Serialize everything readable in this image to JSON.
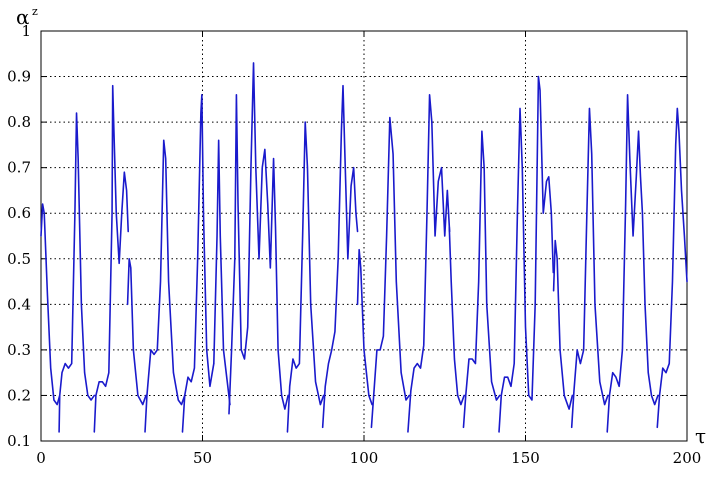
{
  "chart_data": {
    "type": "line",
    "xlabel": "τ",
    "ylabel": "α",
    "ylabel_superscript": "z",
    "xlim": [
      0,
      200
    ],
    "ylim": [
      0.1,
      1.0
    ],
    "xticks": [
      0,
      50,
      100,
      150,
      200
    ],
    "yticks": [
      0.1,
      0.2,
      0.3,
      0.4,
      0.5,
      0.6,
      0.7,
      0.8,
      0.9,
      1
    ],
    "xtick_labels": [
      "0",
      "50",
      "100",
      "150",
      "200"
    ],
    "ytick_labels": [
      "0.1",
      "0.2",
      "0.3",
      "0.4",
      "0.5",
      "0.6",
      "0.7",
      "0.8",
      "0.9",
      "1"
    ],
    "grid": true,
    "grid_style": "dotted",
    "series_color": "#1a1acc",
    "series": [
      {
        "segments": [
          [
            [
              0,
              0.55
            ],
            [
              0.5,
              0.62
            ],
            [
              1,
              0.6
            ],
            [
              2,
              0.42
            ],
            [
              3,
              0.26
            ],
            [
              4,
              0.19
            ],
            [
              5,
              0.18
            ],
            [
              5.8,
              0.2
            ],
            [
              6.5,
              0.25
            ],
            [
              7.5,
              0.27
            ],
            [
              8.5,
              0.26
            ],
            [
              9.5,
              0.27
            ],
            [
              10.5,
              0.6
            ],
            [
              11,
              0.82
            ],
            [
              11.5,
              0.72
            ],
            [
              12.5,
              0.4
            ],
            [
              13.5,
              0.25
            ],
            [
              14.5,
              0.2
            ],
            [
              15.5,
              0.19
            ],
            [
              16.5,
              0.2
            ]
          ],
          [
            [
              5.6,
              0.12
            ],
            [
              5.8,
              0.2
            ]
          ],
          [
            [
              16.5,
              0.12
            ],
            [
              17,
              0.2
            ],
            [
              18,
              0.23
            ],
            [
              19,
              0.23
            ],
            [
              20,
              0.22
            ],
            [
              21,
              0.25
            ],
            [
              22,
              0.6
            ],
            [
              22.2,
              0.88
            ],
            [
              22.5,
              0.8
            ],
            [
              23.3,
              0.6
            ],
            [
              24.2,
              0.49
            ],
            [
              25,
              0.6
            ],
            [
              25.8,
              0.69
            ],
            [
              26.5,
              0.65
            ],
            [
              27,
              0.56
            ]
          ],
          [
            [
              26.8,
              0.4
            ],
            [
              27.3,
              0.5
            ],
            [
              27.8,
              0.48
            ],
            [
              28.6,
              0.3
            ],
            [
              30,
              0.2
            ],
            [
              31.5,
              0.18
            ],
            [
              32.5,
              0.2
            ]
          ],
          [
            [
              32.2,
              0.12
            ],
            [
              32.8,
              0.2
            ],
            [
              34,
              0.3
            ],
            [
              35,
              0.29
            ],
            [
              36,
              0.3
            ],
            [
              37,
              0.45
            ],
            [
              38,
              0.76
            ],
            [
              38.6,
              0.72
            ],
            [
              39.5,
              0.45
            ],
            [
              41,
              0.25
            ],
            [
              42.5,
              0.19
            ],
            [
              43.5,
              0.18
            ],
            [
              44.5,
              0.2
            ]
          ],
          [
            [
              43.8,
              0.12
            ],
            [
              44.5,
              0.2
            ],
            [
              45.5,
              0.24
            ],
            [
              46.5,
              0.23
            ],
            [
              47.5,
              0.26
            ],
            [
              48.5,
              0.5
            ],
            [
              49.5,
              0.82
            ],
            [
              49.8,
              0.86
            ],
            [
              50.3,
              0.6
            ],
            [
              51.3,
              0.3
            ],
            [
              52.3,
              0.22
            ],
            [
              53.5,
              0.27
            ]
          ],
          [
            [
              53.5,
              0.27
            ],
            [
              54.5,
              0.55
            ],
            [
              55,
              0.76
            ],
            [
              55.5,
              0.55
            ],
            [
              56.5,
              0.3
            ],
            [
              57.5,
              0.24
            ],
            [
              58.5,
              0.18
            ]
          ],
          [
            [
              58.2,
              0.16
            ],
            [
              59,
              0.3
            ],
            [
              60,
              0.5
            ],
            [
              60.5,
              0.86
            ],
            [
              61,
              0.62
            ],
            [
              62,
              0.3
            ],
            [
              63,
              0.28
            ],
            [
              64,
              0.35
            ],
            [
              65,
              0.7
            ],
            [
              65.8,
              0.93
            ],
            [
              66.5,
              0.7
            ],
            [
              67.5,
              0.5
            ],
            [
              68.5,
              0.7
            ],
            [
              69.3,
              0.74
            ],
            [
              70.2,
              0.62
            ],
            [
              71,
              0.48
            ],
            [
              72,
              0.72
            ],
            [
              72.6,
              0.57
            ],
            [
              73.4,
              0.3
            ],
            [
              74.5,
              0.2
            ],
            [
              75.5,
              0.17
            ],
            [
              76.5,
              0.2
            ]
          ],
          [
            [
              76.3,
              0.12
            ],
            [
              77,
              0.22
            ],
            [
              78,
              0.28
            ],
            [
              79,
              0.26
            ],
            [
              80,
              0.27
            ],
            [
              81,
              0.55
            ],
            [
              81.8,
              0.8
            ],
            [
              82.5,
              0.7
            ],
            [
              83.5,
              0.4
            ],
            [
              85,
              0.23
            ],
            [
              86.5,
              0.18
            ],
            [
              87.5,
              0.2
            ]
          ],
          [
            [
              87.2,
              0.13
            ],
            [
              88,
              0.22
            ],
            [
              89,
              0.27
            ],
            [
              90,
              0.3
            ],
            [
              91,
              0.34
            ],
            [
              92,
              0.5
            ],
            [
              93,
              0.78
            ],
            [
              93.5,
              0.88
            ],
            [
              94,
              0.75
            ],
            [
              95,
              0.5
            ],
            [
              96,
              0.66
            ],
            [
              96.8,
              0.7
            ],
            [
              97.5,
              0.6
            ],
            [
              98,
              0.56
            ]
          ],
          [
            [
              98,
              0.4
            ],
            [
              98.5,
              0.52
            ],
            [
              99,
              0.48
            ],
            [
              100,
              0.3
            ],
            [
              101.5,
              0.2
            ],
            [
              102.5,
              0.18
            ]
          ],
          [
            [
              102.3,
              0.13
            ],
            [
              103,
              0.2
            ],
            [
              104,
              0.3
            ],
            [
              105,
              0.3
            ],
            [
              106,
              0.33
            ],
            [
              107,
              0.55
            ],
            [
              108,
              0.81
            ],
            [
              109,
              0.73
            ],
            [
              110,
              0.45
            ],
            [
              111.5,
              0.25
            ],
            [
              113,
              0.19
            ],
            [
              114,
              0.2
            ]
          ],
          [
            [
              113.6,
              0.12
            ],
            [
              114.5,
              0.21
            ],
            [
              115.5,
              0.26
            ],
            [
              116.5,
              0.27
            ],
            [
              117.5,
              0.26
            ],
            [
              118.5,
              0.31
            ],
            [
              119.5,
              0.6
            ],
            [
              120.3,
              0.86
            ],
            [
              121,
              0.8
            ],
            [
              122,
              0.55
            ],
            [
              123,
              0.67
            ],
            [
              124,
              0.7
            ],
            [
              125,
              0.55
            ],
            [
              125.8,
              0.65
            ],
            [
              126.5,
              0.56
            ]
          ],
          [
            [
              126.4,
              0.57
            ],
            [
              127,
              0.45
            ],
            [
              128,
              0.28
            ],
            [
              129,
              0.2
            ],
            [
              130,
              0.18
            ],
            [
              131,
              0.2
            ]
          ],
          [
            [
              130.8,
              0.13
            ],
            [
              131.5,
              0.2
            ],
            [
              132.5,
              0.28
            ],
            [
              133.5,
              0.28
            ],
            [
              134.5,
              0.27
            ],
            [
              135.5,
              0.45
            ],
            [
              136.5,
              0.78
            ],
            [
              137.2,
              0.7
            ],
            [
              138,
              0.4
            ],
            [
              139.5,
              0.23
            ],
            [
              141,
              0.19
            ],
            [
              142,
              0.2
            ]
          ],
          [
            [
              141.8,
              0.12
            ],
            [
              142.5,
              0.2
            ],
            [
              143.5,
              0.24
            ],
            [
              144.5,
              0.24
            ],
            [
              145.5,
              0.22
            ],
            [
              146.5,
              0.27
            ],
            [
              147.5,
              0.6
            ],
            [
              148.3,
              0.83
            ],
            [
              149,
              0.7
            ],
            [
              150,
              0.35
            ],
            [
              151,
              0.2
            ],
            [
              152,
              0.19
            ],
            [
              153,
              0.4
            ],
            [
              154,
              0.9
            ],
            [
              154.5,
              0.87
            ],
            [
              155.5,
              0.6
            ],
            [
              156.5,
              0.67
            ],
            [
              157.2,
              0.68
            ],
            [
              158,
              0.6
            ],
            [
              158.6,
              0.47
            ]
          ],
          [
            [
              158.7,
              0.43
            ],
            [
              159.2,
              0.54
            ],
            [
              159.8,
              0.5
            ],
            [
              160.7,
              0.3
            ],
            [
              162,
              0.2
            ],
            [
              163.5,
              0.17
            ],
            [
              164.5,
              0.2
            ]
          ],
          [
            [
              164.3,
              0.13
            ],
            [
              165,
              0.21
            ],
            [
              166,
              0.3
            ],
            [
              167,
              0.27
            ],
            [
              168,
              0.3
            ],
            [
              169,
              0.6
            ],
            [
              169.8,
              0.83
            ],
            [
              170.5,
              0.73
            ],
            [
              171.5,
              0.4
            ],
            [
              173,
              0.23
            ],
            [
              174.5,
              0.18
            ],
            [
              175.5,
              0.2
            ]
          ],
          [
            [
              175.3,
              0.12
            ],
            [
              176,
              0.2
            ],
            [
              177,
              0.25
            ],
            [
              178,
              0.24
            ],
            [
              179,
              0.22
            ],
            [
              180,
              0.3
            ],
            [
              181,
              0.62
            ],
            [
              181.6,
              0.86
            ],
            [
              182.3,
              0.72
            ],
            [
              183.3,
              0.55
            ],
            [
              184.3,
              0.68
            ],
            [
              185,
              0.78
            ],
            [
              185.6,
              0.68
            ],
            [
              186.2,
              0.6
            ],
            [
              187,
              0.4
            ],
            [
              188,
              0.25
            ],
            [
              189,
              0.2
            ],
            [
              190,
              0.18
            ],
            [
              191,
              0.2
            ]
          ],
          [
            [
              190.8,
              0.13
            ],
            [
              191.5,
              0.2
            ],
            [
              192.5,
              0.26
            ],
            [
              193.5,
              0.25
            ],
            [
              194.5,
              0.27
            ],
            [
              195.5,
              0.45
            ],
            [
              196.5,
              0.75
            ],
            [
              197,
              0.83
            ],
            [
              197.5,
              0.78
            ],
            [
              198.3,
              0.65
            ],
            [
              199.2,
              0.55
            ],
            [
              200,
              0.45
            ]
          ]
        ]
      }
    ]
  }
}
